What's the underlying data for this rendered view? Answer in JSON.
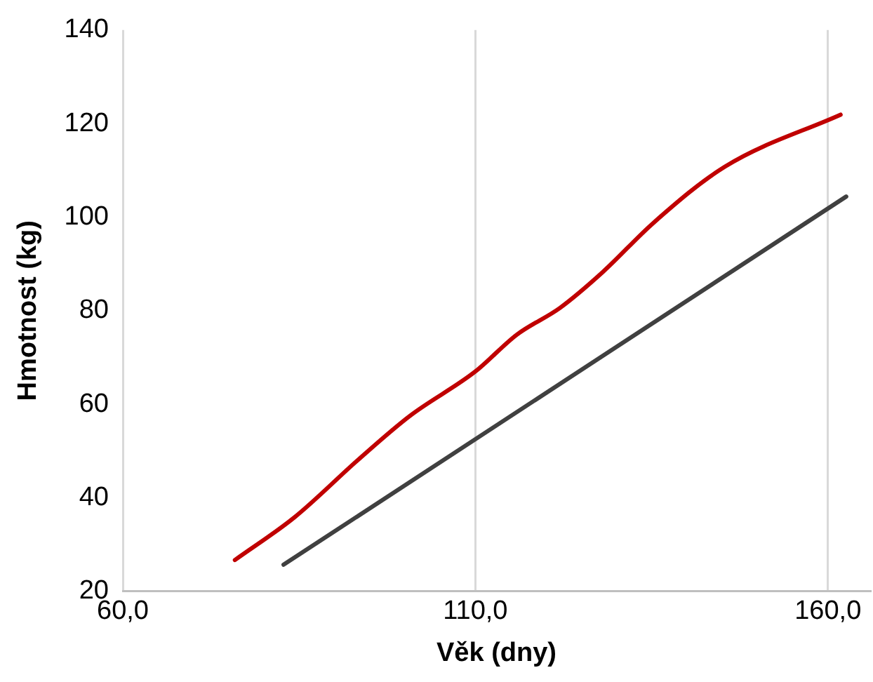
{
  "chart_data": {
    "type": "line",
    "xlabel": "Věk (dny)",
    "ylabel": "Hmotnost (kg)",
    "xlim": [
      60,
      166
    ],
    "xticks": [
      {
        "value": 60,
        "label": "60,0"
      },
      {
        "value": 110,
        "label": "110,0"
      },
      {
        "value": 160,
        "label": "160,0"
      }
    ],
    "ylim": [
      20,
      140
    ],
    "yticks": [
      20,
      40,
      60,
      80,
      100,
      120,
      140
    ],
    "grid": "x",
    "legend": false,
    "marker": "none",
    "line_style": "solid",
    "series": [
      {
        "color": "#c00000",
        "x": [
          75.9,
          84.4,
          93.5,
          100.7,
          110,
          115.9,
          122,
          128.1,
          135.2,
          145.4,
          161.8
        ],
        "values": [
          26.7,
          35.9,
          48.3,
          57.5,
          67,
          74.9,
          80.6,
          88.3,
          98.7,
          110.8,
          121.9
        ]
      },
      {
        "color": "#404040",
        "x": [
          82.8,
          162.6
        ],
        "values": [
          25.7,
          104.4
        ]
      }
    ]
  }
}
